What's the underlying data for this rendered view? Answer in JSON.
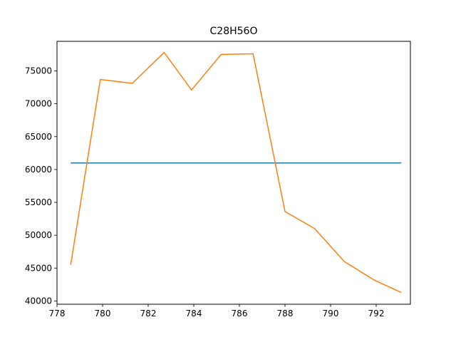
{
  "chart_data": {
    "type": "line",
    "title": "C28H56O",
    "xlabel": "",
    "ylabel": "",
    "xlim": [
      778.0,
      793.5
    ],
    "ylim": [
      39500,
      79500
    ],
    "x_ticks": [
      778,
      780,
      782,
      784,
      786,
      788,
      790,
      792
    ],
    "y_ticks": [
      40000,
      45000,
      50000,
      55000,
      60000,
      65000,
      70000,
      75000
    ],
    "grid": false,
    "legend": "none",
    "series": [
      {
        "color": "#1f77b4",
        "x": [
          778.6,
          793.1
        ],
        "y": [
          61000,
          61000
        ]
      },
      {
        "color": "#ff7f0e",
        "x": [
          778.6,
          779.9,
          781.3,
          782.7,
          783.9,
          785.2,
          786.6,
          788.0,
          789.3,
          790.6,
          791.9,
          793.1
        ],
        "y": [
          45500,
          73700,
          73100,
          77800,
          72100,
          77500,
          77600,
          53600,
          51000,
          46000,
          43200,
          41300
        ]
      }
    ]
  }
}
